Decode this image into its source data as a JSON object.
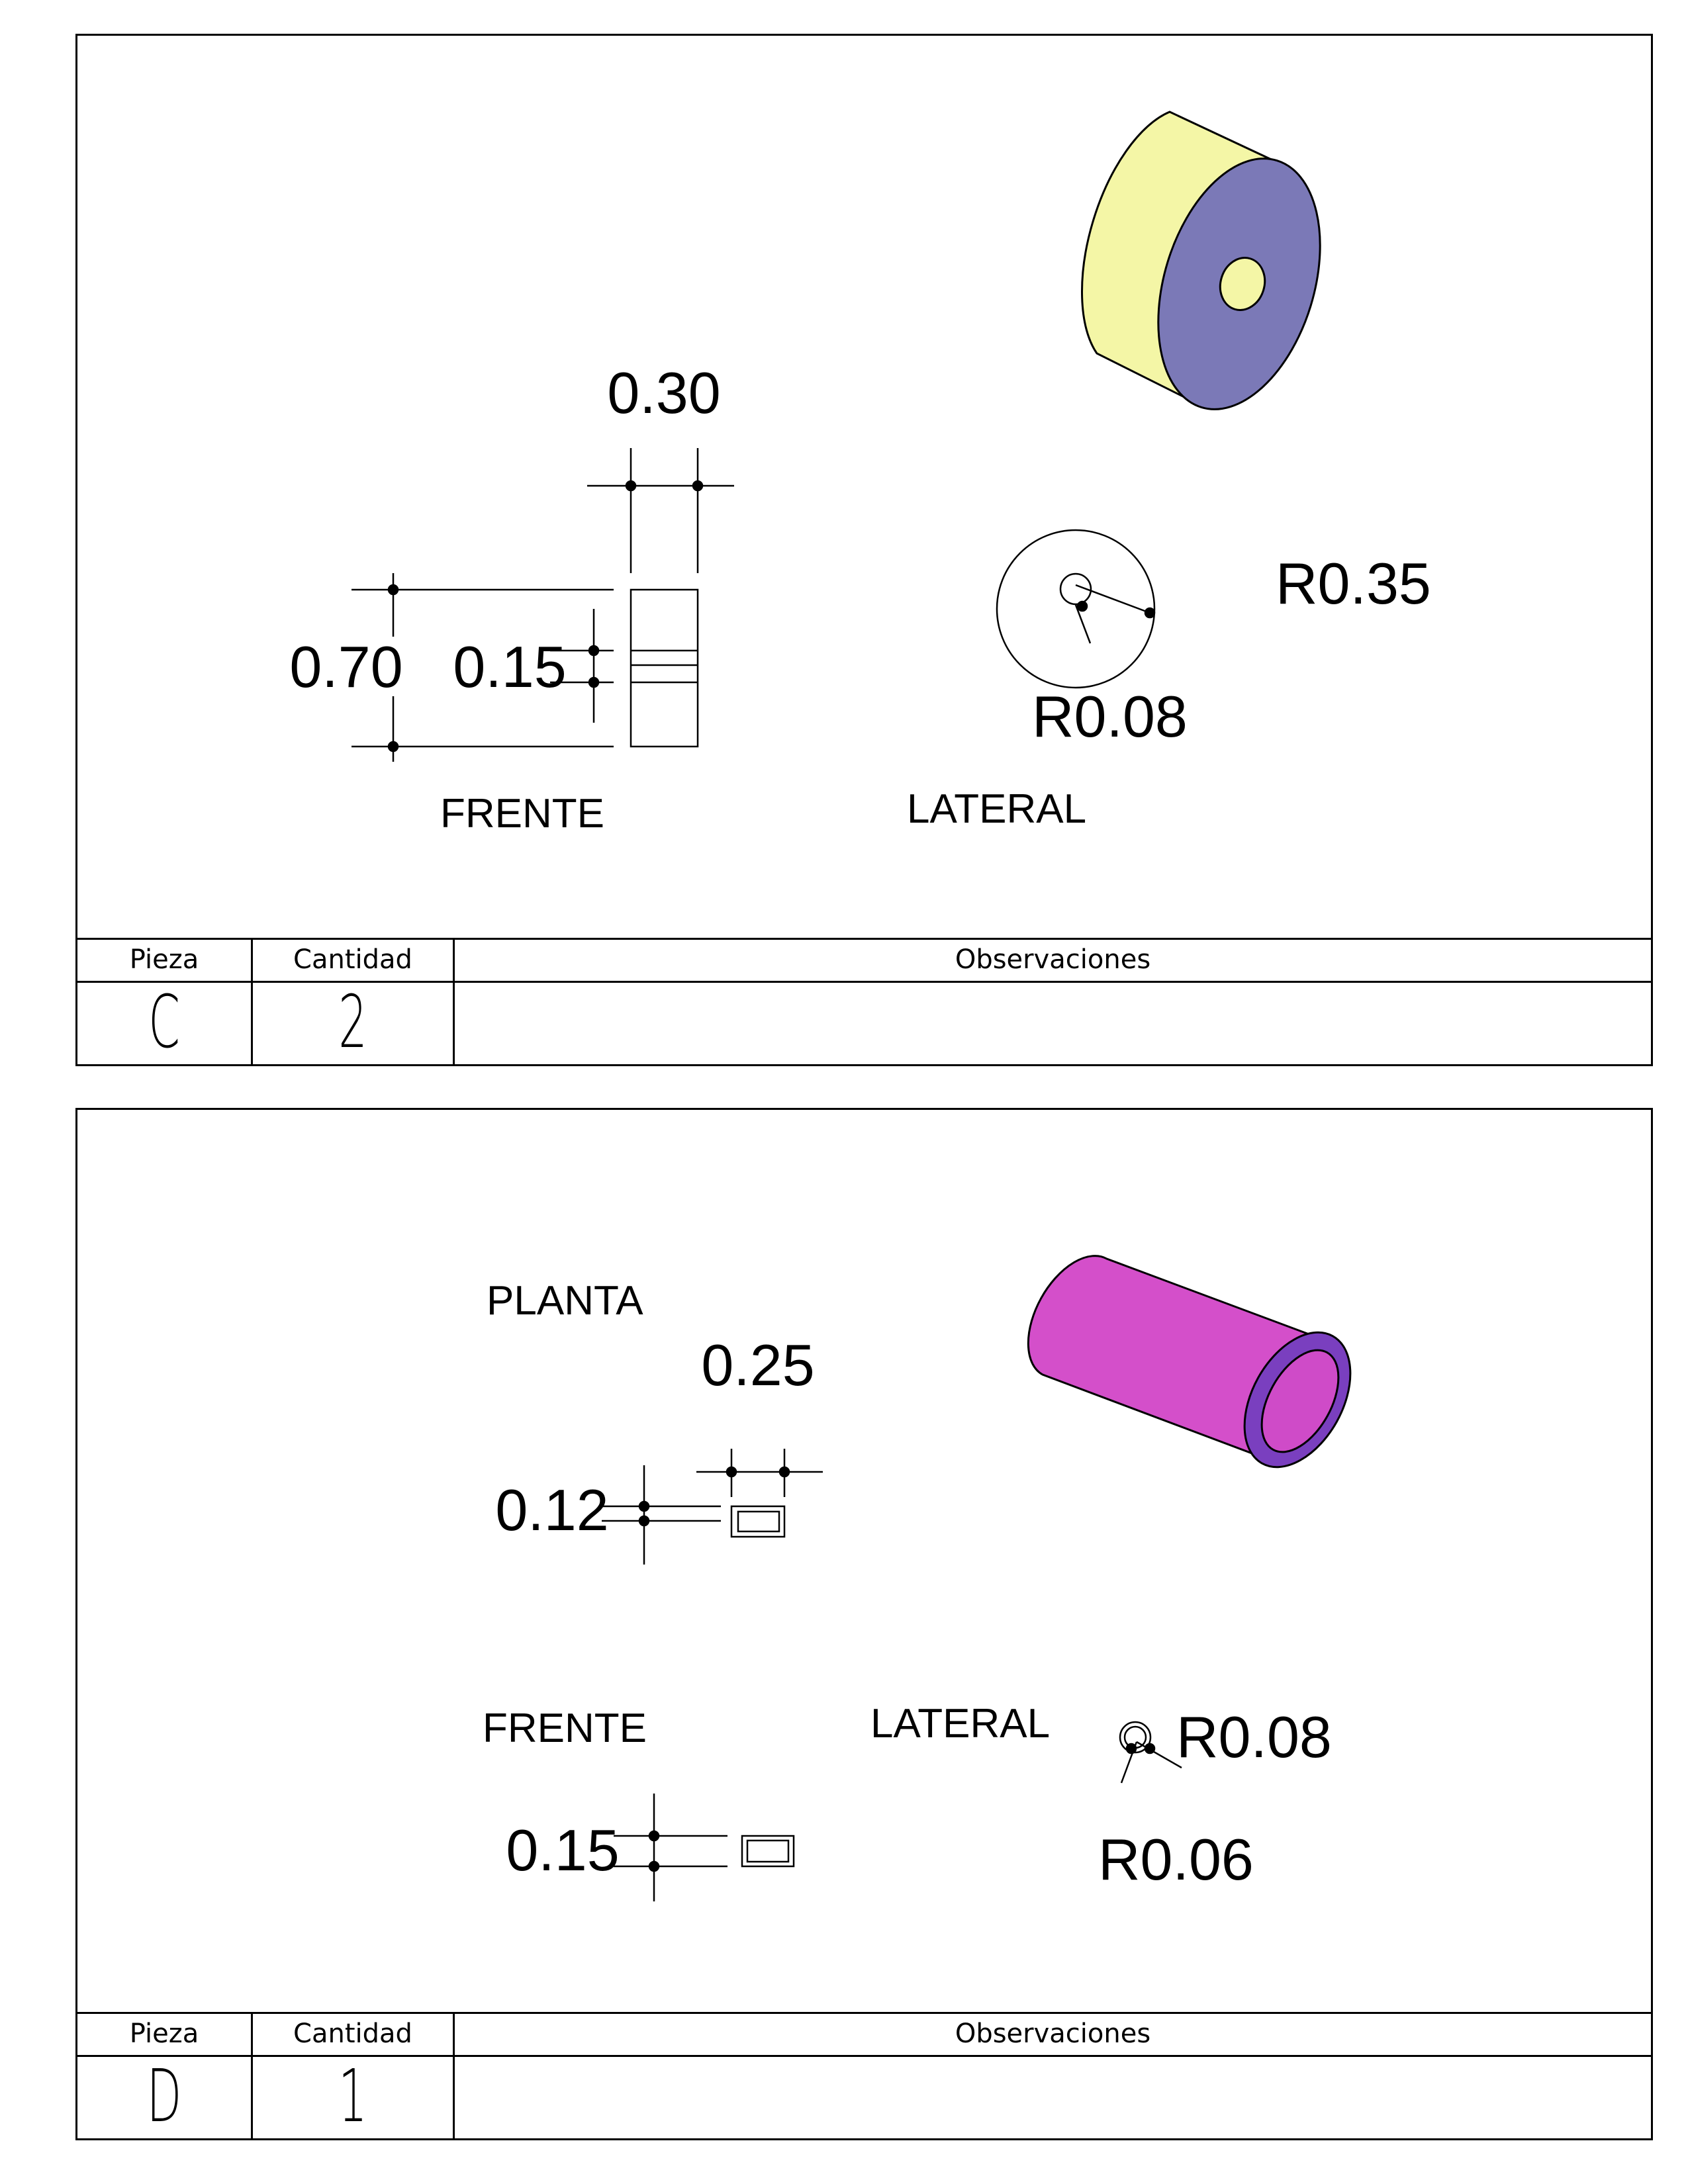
{
  "sheets": [
    {
      "views": {
        "front": "FRENTE",
        "side": "LATERAL"
      },
      "dims": {
        "width": "0.30",
        "height": "0.70",
        "bore": "0.15",
        "outer_radius": "R0.35",
        "inner_radius": "R0.08"
      },
      "table": {
        "h_piece": "Pieza",
        "h_qty": "Cantidad",
        "h_obs": "Observaciones",
        "piece": "C",
        "qty": "2",
        "obs": ""
      },
      "colors": {
        "outer_face": "#f4f6a6",
        "front_face": "#7b79b7"
      }
    },
    {
      "views": {
        "top": "PLANTA",
        "front": "FRENTE",
        "side": "LATERAL"
      },
      "dims": {
        "top_width": "0.25",
        "top_height": "0.12",
        "front_height": "0.15",
        "outer_radius": "R0.08",
        "inner_radius": "R0.06"
      },
      "table": {
        "h_piece": "Pieza",
        "h_qty": "Cantidad",
        "h_obs": "Observaciones",
        "piece": "D",
        "qty": "1",
        "obs": ""
      },
      "colors": {
        "tube_body": "#d44fca",
        "tube_rim": "#7a3fbf"
      }
    }
  ]
}
